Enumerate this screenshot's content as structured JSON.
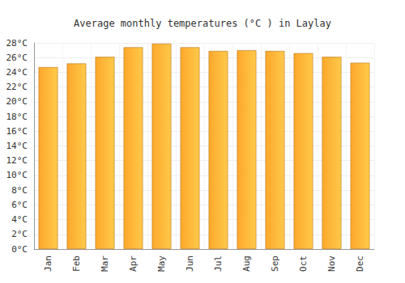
{
  "chart_data": {
    "type": "bar",
    "title": "Average monthly temperatures (°C ) in Laylay",
    "categories": [
      "Jan",
      "Feb",
      "Mar",
      "Apr",
      "May",
      "Jun",
      "Jul",
      "Aug",
      "Sep",
      "Oct",
      "Nov",
      "Dec"
    ],
    "values": [
      24.7,
      25.2,
      26.1,
      27.4,
      27.9,
      27.4,
      26.9,
      27.0,
      26.9,
      26.6,
      26.1,
      25.3
    ],
    "color": "#fca82c",
    "ylim": [
      0,
      28
    ],
    "yticks": [
      {
        "value": 0,
        "label": "0°C"
      },
      {
        "value": 2,
        "label": "2°C"
      },
      {
        "value": 4,
        "label": "4°C"
      },
      {
        "value": 6,
        "label": "6°C"
      },
      {
        "value": 8,
        "label": "8°C"
      },
      {
        "value": 10,
        "label": "10°C"
      },
      {
        "value": 12,
        "label": "12°C"
      },
      {
        "value": 14,
        "label": "14°C"
      },
      {
        "value": 16,
        "label": "16°C"
      },
      {
        "value": 18,
        "label": "18°C"
      },
      {
        "value": 20,
        "label": "20°C"
      },
      {
        "value": 22,
        "label": "22°C"
      },
      {
        "value": 24,
        "label": "24°C"
      },
      {
        "value": 26,
        "label": "26°C"
      },
      {
        "value": 28,
        "label": "28°C"
      }
    ],
    "grid": true
  }
}
